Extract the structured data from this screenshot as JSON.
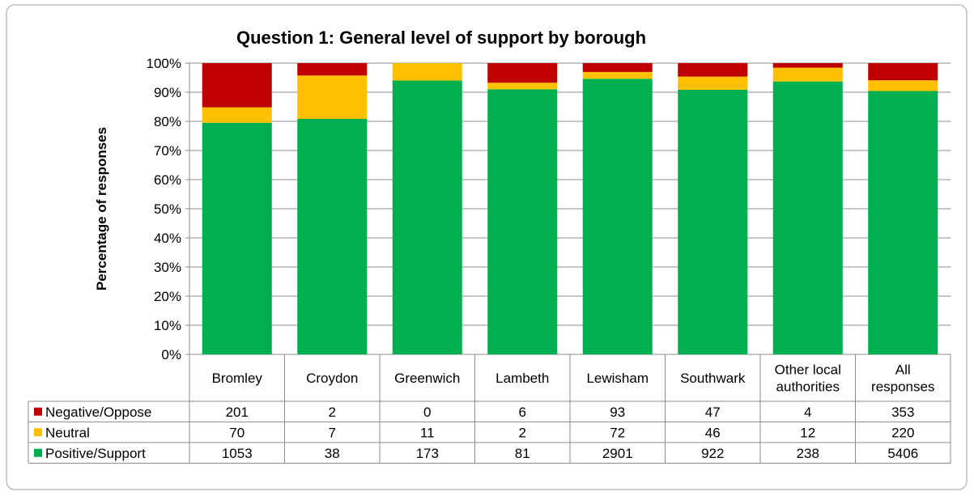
{
  "chart_data": {
    "type": "bar",
    "stacked": "percent",
    "title": "Question 1: General level of support by borough",
    "xlabel": "",
    "ylabel": "Percentage of responses",
    "ylim": [
      0,
      100
    ],
    "y_ticks": [
      "0%",
      "10%",
      "20%",
      "30%",
      "40%",
      "50%",
      "60%",
      "70%",
      "80%",
      "90%",
      "100%"
    ],
    "grid": true,
    "legend": "data-table",
    "categories": [
      "Bromley",
      "Croydon",
      "Greenwich",
      "Lambeth",
      "Lewisham",
      "Southwark",
      "Other local authorities",
      "All responses"
    ],
    "category_lines": [
      [
        "Bromley"
      ],
      [
        "Croydon"
      ],
      [
        "Greenwich"
      ],
      [
        "Lambeth"
      ],
      [
        "Lewisham"
      ],
      [
        "Southwark"
      ],
      [
        "Other local",
        "authorities"
      ],
      [
        "All",
        "responses"
      ]
    ],
    "series": [
      {
        "name": "Negative/Oppose",
        "color": "#C00000",
        "values": [
          201,
          2,
          0,
          6,
          93,
          47,
          4,
          353
        ]
      },
      {
        "name": "Neutral",
        "color": "#FFC000",
        "values": [
          70,
          7,
          11,
          2,
          72,
          46,
          12,
          220
        ]
      },
      {
        "name": "Positive/Support",
        "color": "#00B050",
        "values": [
          1053,
          38,
          173,
          81,
          2901,
          922,
          238,
          5406
        ]
      }
    ]
  }
}
